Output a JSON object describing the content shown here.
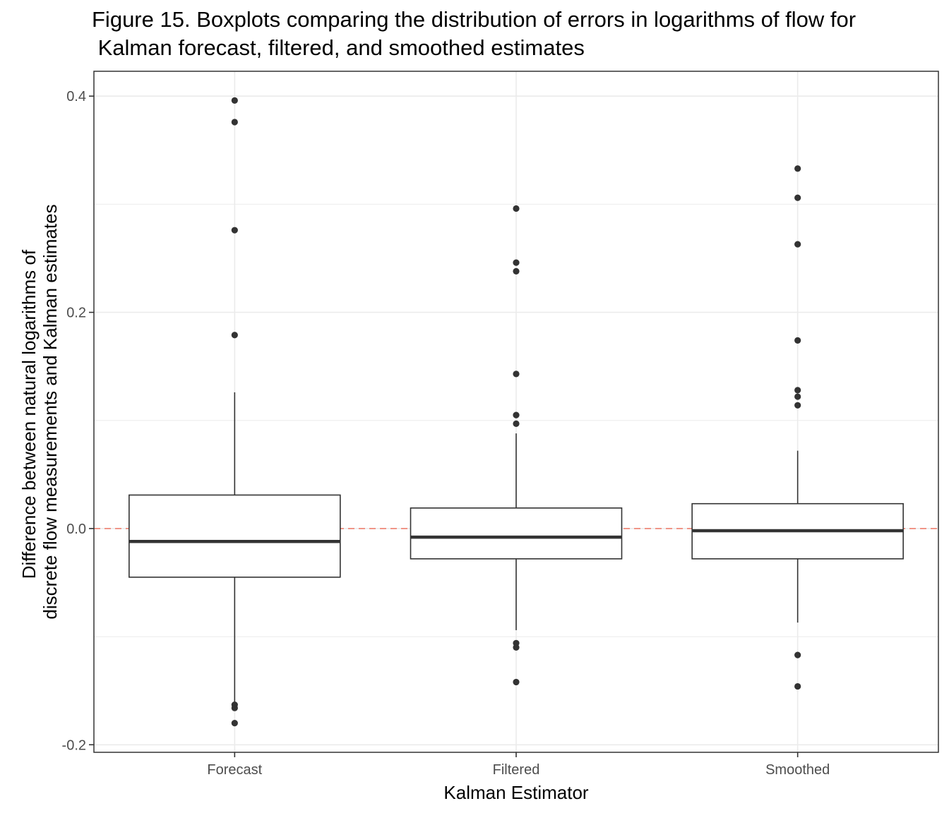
{
  "chart_data": {
    "type": "boxplot",
    "title_lines": [
      "Figure 15. Boxplots comparing the distribution of errors in logarithms of flow for",
      " Kalman forecast, filtered, and smoothed estimates"
    ],
    "xlabel": "Kalman Estimator",
    "ylabel_lines": [
      "Difference between natural logarithms of",
      "discrete flow measurements and Kalman estimates"
    ],
    "categories": [
      "Forecast",
      "Filtered",
      "Smoothed"
    ],
    "ylim": [
      -0.207,
      0.423
    ],
    "yticks": [
      -0.2,
      0.0,
      0.2,
      0.4
    ],
    "ytick_labels": [
      "-0.2",
      "0.0",
      "0.2",
      "0.4"
    ],
    "y_minor_gridlines": [
      -0.1,
      0.1,
      0.3
    ],
    "reference_line": {
      "y": 0.0,
      "style": "dashed",
      "color": "#F08070"
    },
    "grid": true,
    "box_fill": "#ffffff",
    "line_color": "#333333",
    "boxes": [
      {
        "category": "Forecast",
        "whisker_low": -0.162,
        "q1": -0.045,
        "median": -0.012,
        "q3": 0.031,
        "whisker_high": 0.126,
        "outliers": [
          0.396,
          0.376,
          0.276,
          0.179,
          -0.163,
          -0.166,
          -0.18
        ]
      },
      {
        "category": "Filtered",
        "whisker_low": -0.094,
        "q1": -0.028,
        "median": -0.008,
        "q3": 0.019,
        "whisker_high": 0.088,
        "outliers": [
          0.296,
          0.246,
          0.238,
          0.143,
          0.105,
          0.097,
          -0.106,
          -0.11,
          -0.142
        ]
      },
      {
        "category": "Smoothed",
        "whisker_low": -0.087,
        "q1": -0.028,
        "median": -0.002,
        "q3": 0.023,
        "whisker_high": 0.072,
        "outliers": [
          0.333,
          0.306,
          0.263,
          0.174,
          0.128,
          0.122,
          0.114,
          -0.117,
          -0.146
        ]
      }
    ]
  }
}
